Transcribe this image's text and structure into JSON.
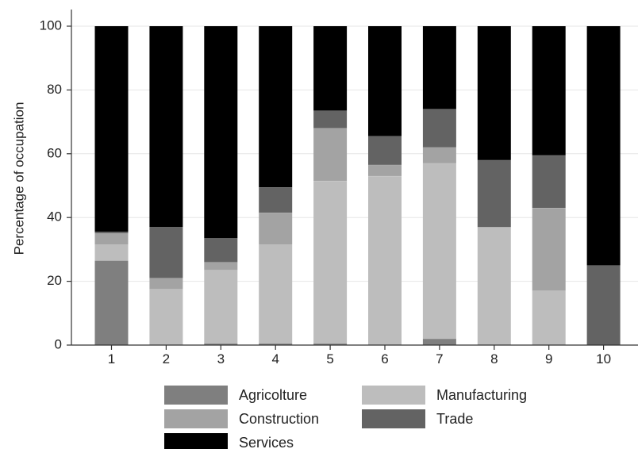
{
  "chart_data": {
    "type": "bar",
    "stacked": true,
    "title": "",
    "xlabel": "",
    "ylabel": "Percentage of occupation",
    "ylim": [
      0,
      100
    ],
    "yticks": [
      0,
      20,
      40,
      60,
      80,
      100
    ],
    "grid": true,
    "legend_position": "bottom",
    "categories": [
      "1",
      "2",
      "3",
      "4",
      "5",
      "6",
      "7",
      "8",
      "9",
      "10"
    ],
    "series": [
      {
        "name": "Agricolture",
        "color": "#7f7f7f",
        "values": [
          26.5,
          0,
          0.5,
          0.5,
          0.5,
          0,
          2.0,
          0,
          0,
          0
        ]
      },
      {
        "name": "Manufacturing",
        "color": "#bdbdbd",
        "values": [
          5,
          17.5,
          23,
          31,
          51,
          53,
          55,
          37,
          17,
          0
        ]
      },
      {
        "name": "Construction",
        "color": "#a3a3a3",
        "values": [
          3.5,
          3.5,
          2.5,
          10,
          16.5,
          3.5,
          5,
          0,
          26,
          0
        ]
      },
      {
        "name": "Trade",
        "color": "#636363",
        "values": [
          0.5,
          16,
          7.5,
          8,
          5.5,
          9,
          12,
          21,
          16.5,
          25
        ]
      },
      {
        "name": "Services",
        "color": "#000000",
        "values": [
          64.5,
          63,
          66.5,
          50.5,
          26.5,
          34.5,
          26,
          42,
          40.5,
          75
        ]
      }
    ],
    "legend_order": [
      "Agricolture",
      "Manufacturing",
      "Construction",
      "Trade",
      "Services"
    ]
  }
}
